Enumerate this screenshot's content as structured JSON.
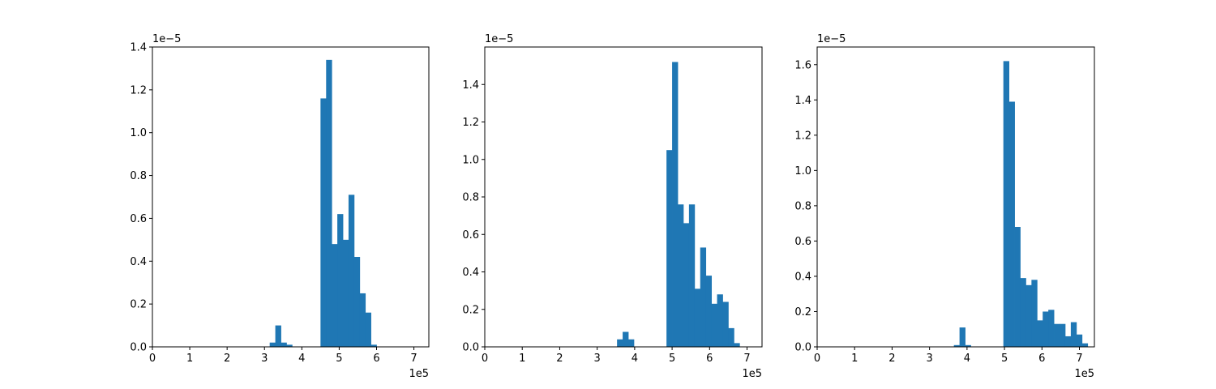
{
  "chart_data": [
    {
      "type": "bar",
      "xlim": [
        0,
        7.4
      ],
      "ylim": [
        0,
        1.4
      ],
      "x_ticks": [
        "0",
        "1",
        "2",
        "3",
        "4",
        "5",
        "6",
        "7"
      ],
      "y_ticks": [
        "0.0",
        "0.2",
        "0.4",
        "0.6",
        "0.8",
        "1.0",
        "1.2",
        "1.4"
      ],
      "x_scale_label": "1e5",
      "y_scale_label": "1e−5",
      "bin_width": 0.15,
      "color": "#1f77b4",
      "bins": [
        {
          "x": 3.14,
          "value": 0.02
        },
        {
          "x": 3.29,
          "value": 0.1
        },
        {
          "x": 3.44,
          "value": 0.02
        },
        {
          "x": 3.59,
          "value": 0.01
        },
        {
          "x": 4.5,
          "value": 1.16
        },
        {
          "x": 4.65,
          "value": 1.34
        },
        {
          "x": 4.8,
          "value": 0.48
        },
        {
          "x": 4.95,
          "value": 0.62
        },
        {
          "x": 5.1,
          "value": 0.5
        },
        {
          "x": 5.25,
          "value": 0.71
        },
        {
          "x": 5.4,
          "value": 0.42
        },
        {
          "x": 5.55,
          "value": 0.25
        },
        {
          "x": 5.7,
          "value": 0.16
        },
        {
          "x": 5.85,
          "value": 0.01
        }
      ]
    },
    {
      "type": "bar",
      "xlim": [
        0,
        7.4
      ],
      "ylim": [
        0,
        1.6
      ],
      "x_ticks": [
        "0",
        "1",
        "2",
        "3",
        "4",
        "5",
        "6",
        "7"
      ],
      "y_ticks": [
        "0.0",
        "0.2",
        "0.4",
        "0.6",
        "0.8",
        "1.0",
        "1.2",
        "1.4"
      ],
      "x_scale_label": "1e5",
      "y_scale_label": "1e−5",
      "bin_width": 0.15,
      "color": "#1f77b4",
      "bins": [
        {
          "x": 3.53,
          "value": 0.04
        },
        {
          "x": 3.68,
          "value": 0.08
        },
        {
          "x": 3.83,
          "value": 0.04
        },
        {
          "x": 4.85,
          "value": 1.05
        },
        {
          "x": 5.0,
          "value": 1.52
        },
        {
          "x": 5.15,
          "value": 0.76
        },
        {
          "x": 5.3,
          "value": 0.66
        },
        {
          "x": 5.45,
          "value": 0.76
        },
        {
          "x": 5.6,
          "value": 0.31
        },
        {
          "x": 5.75,
          "value": 0.53
        },
        {
          "x": 5.9,
          "value": 0.38
        },
        {
          "x": 6.05,
          "value": 0.23
        },
        {
          "x": 6.2,
          "value": 0.28
        },
        {
          "x": 6.35,
          "value": 0.24
        },
        {
          "x": 6.5,
          "value": 0.1
        },
        {
          "x": 6.65,
          "value": 0.02
        }
      ]
    },
    {
      "type": "bar",
      "xlim": [
        0,
        7.4
      ],
      "ylim": [
        0,
        1.7
      ],
      "x_ticks": [
        "0",
        "1",
        "2",
        "3",
        "4",
        "5",
        "6",
        "7"
      ],
      "y_ticks": [
        "0.0",
        "0.2",
        "0.4",
        "0.6",
        "0.8",
        "1.0",
        "1.2",
        "1.4",
        "1.6"
      ],
      "x_scale_label": "1e5",
      "y_scale_label": "1e−5",
      "bin_width": 0.15,
      "color": "#1f77b4",
      "bins": [
        {
          "x": 3.65,
          "value": 0.01
        },
        {
          "x": 3.8,
          "value": 0.11
        },
        {
          "x": 3.95,
          "value": 0.01
        },
        {
          "x": 4.97,
          "value": 1.62
        },
        {
          "x": 5.12,
          "value": 1.39
        },
        {
          "x": 5.27,
          "value": 0.68
        },
        {
          "x": 5.42,
          "value": 0.39
        },
        {
          "x": 5.57,
          "value": 0.35
        },
        {
          "x": 5.72,
          "value": 0.38
        },
        {
          "x": 5.87,
          "value": 0.15
        },
        {
          "x": 6.02,
          "value": 0.2
        },
        {
          "x": 6.17,
          "value": 0.21
        },
        {
          "x": 6.32,
          "value": 0.13
        },
        {
          "x": 6.47,
          "value": 0.13
        },
        {
          "x": 6.62,
          "value": 0.06
        },
        {
          "x": 6.77,
          "value": 0.14
        },
        {
          "x": 6.92,
          "value": 0.07
        },
        {
          "x": 7.07,
          "value": 0.02
        }
      ]
    }
  ]
}
